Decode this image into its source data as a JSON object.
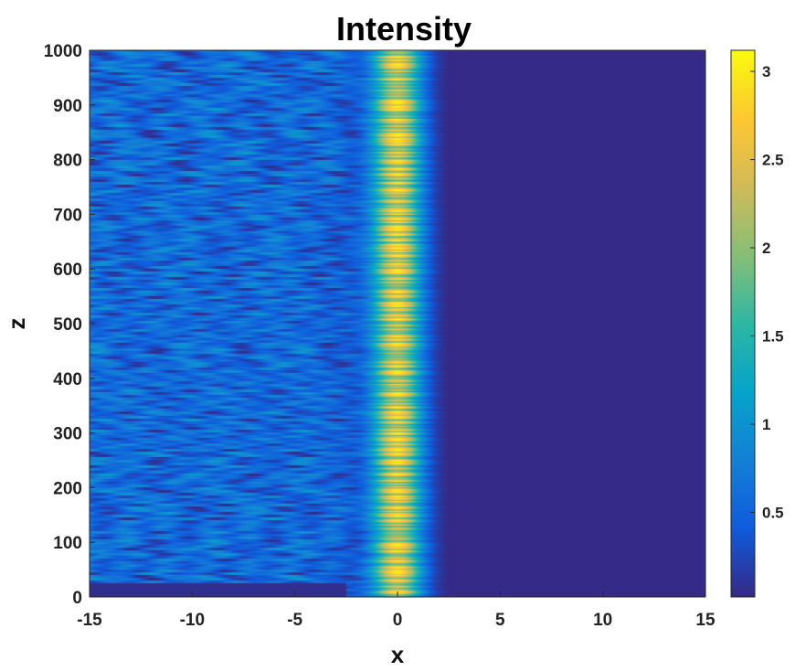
{
  "chart_data": {
    "type": "heatmap",
    "title": "Intensity",
    "xlabel": "x",
    "ylabel": "z",
    "xlim": [
      -15,
      15
    ],
    "ylim": [
      0,
      1000
    ],
    "x_ticks": [
      -15,
      -10,
      -5,
      0,
      5,
      10,
      15
    ],
    "x_tick_labels": [
      "-15",
      "-10",
      "-5",
      "0",
      "5",
      "10",
      "15"
    ],
    "y_ticks": [
      0,
      100,
      200,
      300,
      400,
      500,
      600,
      700,
      800,
      900,
      1000
    ],
    "y_tick_labels": [
      "0",
      "100",
      "200",
      "300",
      "400",
      "500",
      "600",
      "700",
      "800",
      "900",
      "1000"
    ],
    "colorbar": {
      "range": [
        0.02,
        3.12
      ],
      "ticks": [
        0.5,
        1,
        1.5,
        2,
        2.5,
        3
      ],
      "tick_labels": [
        "0.5",
        "1",
        "1.5",
        "2",
        "2.5",
        "3"
      ],
      "colormap": "parula",
      "placement": "right"
    },
    "field": {
      "description_values": "intensity vs x and z",
      "left_region_x": [
        -15,
        -2
      ],
      "left_region_mean": 0.55,
      "peak_x": 0,
      "peak_width": 1.2,
      "peak_max": 3.0,
      "right_region_x": [
        2.5,
        15
      ],
      "right_region_value": 0.02,
      "initial_z_band": [
        0,
        25
      ],
      "initial_band_value": 0.05
    },
    "colors": {
      "parula": [
        "#352A87",
        "#0F5CDD",
        "#1481D6",
        "#06A4CA",
        "#2EB7A4",
        "#87BF77",
        "#D1BB59",
        "#FEC832",
        "#F9FB0E"
      ]
    }
  }
}
